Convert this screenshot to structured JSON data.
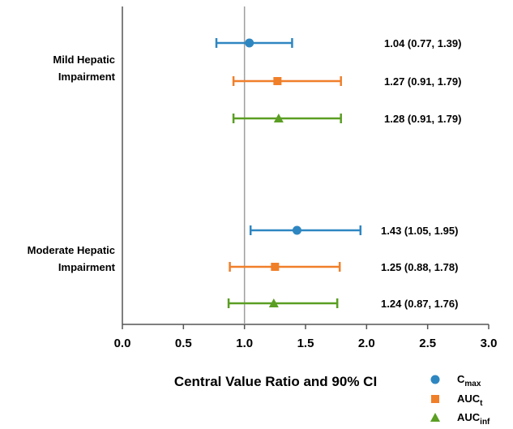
{
  "chart_data": {
    "type": "forest",
    "xlabel": "Central Value Ratio and 90% CI",
    "xlim": [
      0.0,
      3.0
    ],
    "xticks": [
      "0.0",
      "0.5",
      "1.0",
      "1.5",
      "2.0",
      "2.5",
      "3.0"
    ],
    "reference_line": 1.0,
    "legend_placement": "bottom-right",
    "series": [
      {
        "name": "C",
        "sub": "max",
        "marker": "circle",
        "color": "#2e86c1"
      },
      {
        "name": "AUC",
        "sub": "t",
        "marker": "square",
        "color": "#f07f2a"
      },
      {
        "name": "AUC",
        "sub": "inf",
        "marker": "triangle",
        "color": "#5a9e23"
      }
    ],
    "groups": [
      {
        "label_lines": [
          "Mild Hepatic",
          "Impairment"
        ],
        "rows": [
          {
            "series": 0,
            "value": 1.04,
            "low": 0.77,
            "high": 1.39,
            "label": "1.04 (0.77, 1.39)"
          },
          {
            "series": 1,
            "value": 1.27,
            "low": 0.91,
            "high": 1.79,
            "label": "1.27 (0.91, 1.79)"
          },
          {
            "series": 2,
            "value": 1.28,
            "low": 0.91,
            "high": 1.79,
            "label": "1.28 (0.91, 1.79)"
          }
        ]
      },
      {
        "label_lines": [
          "Moderate Hepatic",
          "Impairment"
        ],
        "rows": [
          {
            "series": 0,
            "value": 1.43,
            "low": 1.05,
            "high": 1.95,
            "label": "1.43 (1.05, 1.95)"
          },
          {
            "series": 1,
            "value": 1.25,
            "low": 0.88,
            "high": 1.78,
            "label": "1.25 (0.88, 1.78)"
          },
          {
            "series": 2,
            "value": 1.24,
            "low": 0.87,
            "high": 1.76,
            "label": "1.24 (0.87, 1.76)"
          }
        ]
      }
    ]
  }
}
